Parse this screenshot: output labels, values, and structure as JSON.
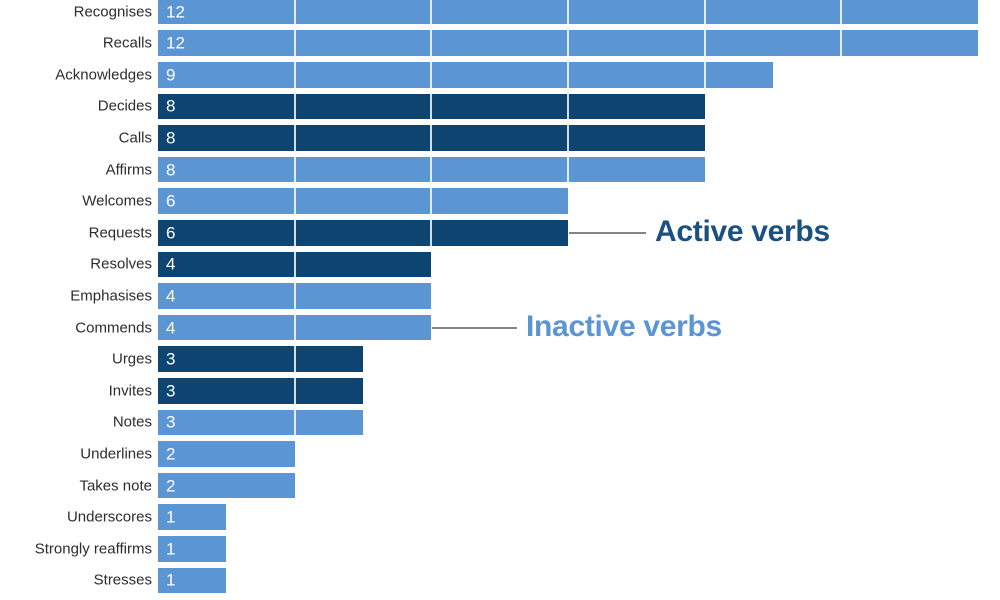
{
  "chart_data": {
    "type": "bar",
    "orientation": "horizontal",
    "title": "",
    "xlabel": "",
    "ylabel": "",
    "xlim": [
      0,
      12
    ],
    "gridline_interval": 2,
    "grid": true,
    "value_labels_inside_bars": true,
    "categories": [
      "Recognises",
      "Recalls",
      "Acknowledges",
      "Decides",
      "Calls",
      "Affirms",
      "Welcomes",
      "Requests",
      "Resolves",
      "Emphasises",
      "Commends",
      "Urges",
      "Invites",
      "Notes",
      "Underlines",
      "Takes note",
      "Underscores",
      "Strongly reaffirms",
      "Stresses"
    ],
    "values": [
      12,
      12,
      9,
      8,
      8,
      8,
      6,
      6,
      4,
      4,
      4,
      3,
      3,
      3,
      2,
      2,
      1,
      1,
      1
    ],
    "display_values": [
      "12",
      "12",
      "9",
      "8",
      "8",
      "8",
      "6",
      "6",
      "4",
      "4",
      "4",
      "3",
      "3",
      "3",
      "2",
      "2",
      "1",
      "1",
      "1"
    ],
    "verb_type": [
      "inactive",
      "inactive",
      "inactive",
      "active",
      "active",
      "inactive",
      "inactive",
      "active",
      "active",
      "inactive",
      "inactive",
      "active",
      "active",
      "inactive",
      "inactive",
      "inactive",
      "inactive",
      "inactive",
      "inactive"
    ],
    "colors": {
      "active_bar": "#0e4470",
      "inactive_bar": "#5b95d3",
      "active_label_text": "#1a5180",
      "inactive_label_text": "#5b95d3",
      "category_label_text": "#2d2d2d",
      "value_label_text": "#ffffff",
      "callout_line": "#848484",
      "gridline": "rgba(255,255,255,0.82)"
    },
    "annotations": [
      {
        "text": "Active verbs",
        "target_category": "Requests",
        "type": "active"
      },
      {
        "text": "Inactive verbs",
        "target_category": "Commends",
        "type": "inactive"
      }
    ]
  }
}
